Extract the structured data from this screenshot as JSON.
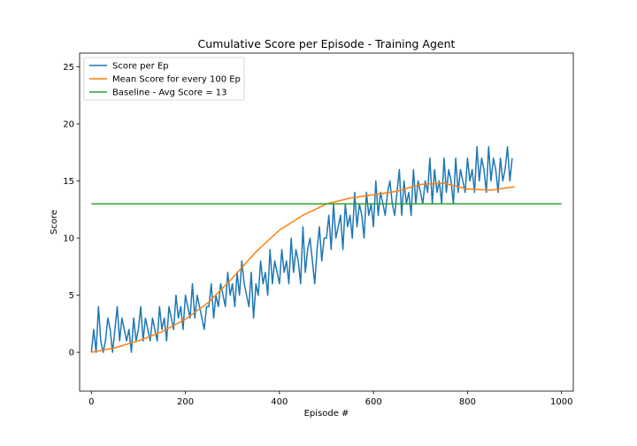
{
  "chart_data": {
    "type": "line",
    "title": "Cumulative Score per Episode - Training Agent",
    "xlabel": "Episode #",
    "ylabel": "Score",
    "xlim": [
      -25,
      1025
    ],
    "ylim": [
      -3.4,
      26.2
    ],
    "xticks": [
      0,
      200,
      400,
      600,
      800,
      1000
    ],
    "yticks": [
      0,
      5,
      10,
      15,
      20,
      25
    ],
    "grid": false,
    "legend_position": "top-left",
    "series": [
      {
        "name": "Score per Ep",
        "color": "#1f77b4",
        "x_start": 0,
        "x_step": 5,
        "y": [
          0,
          2,
          0,
          4,
          1,
          0,
          1,
          3,
          2,
          0,
          2,
          4,
          1,
          3,
          2,
          1,
          2,
          0,
          3,
          1,
          2,
          4,
          1,
          3,
          2,
          1,
          3,
          2,
          1,
          4,
          2,
          3,
          1,
          4,
          3,
          2,
          5,
          3,
          4,
          2,
          5,
          4,
          3,
          6,
          3,
          5,
          4,
          3,
          2,
          4,
          4,
          6,
          3,
          5,
          4,
          6,
          5,
          4,
          7,
          5,
          6,
          4,
          7,
          5,
          8,
          6,
          5,
          4,
          7,
          3,
          6,
          5,
          8,
          6,
          7,
          5,
          9,
          6,
          8,
          7,
          6,
          9,
          7,
          8,
          6,
          10,
          7,
          9,
          8,
          6,
          11,
          7,
          9,
          10,
          8,
          6,
          9,
          11,
          8,
          10,
          10,
          12,
          9,
          13,
          10,
          11,
          12,
          9,
          13,
          11,
          12,
          10,
          14,
          11,
          13,
          12,
          10,
          14,
          12,
          13,
          11,
          15,
          12,
          14,
          13,
          12,
          14,
          15,
          13,
          12,
          14,
          16,
          12,
          15,
          13,
          14,
          12,
          16,
          13,
          15,
          14,
          13,
          15,
          14,
          17,
          13,
          16,
          14,
          15,
          13,
          17,
          14,
          16,
          15,
          13,
          17,
          14,
          16,
          15,
          14,
          17,
          15,
          16,
          14,
          18,
          15,
          17,
          16,
          14,
          18,
          15,
          17,
          16,
          14,
          17,
          15,
          16,
          18,
          15,
          17
        ]
      },
      {
        "name": "Mean Score for every 100 Ep",
        "color": "#ff7f0e",
        "x": [
          0,
          50,
          100,
          150,
          200,
          250,
          300,
          350,
          400,
          450,
          500,
          550,
          600,
          650,
          700,
          750,
          800,
          850,
          900
        ],
        "y": [
          0,
          0.4,
          1.0,
          1.8,
          2.9,
          4.4,
          6.5,
          8.8,
          10.7,
          12.0,
          13.0,
          13.5,
          13.8,
          14.1,
          14.7,
          14.8,
          14.3,
          14.2,
          14.5
        ]
      },
      {
        "name": "Baseline - Avg Score = 13",
        "color": "#2ca02c",
        "x": [
          0,
          1000
        ],
        "y": [
          13,
          13
        ]
      }
    ]
  }
}
